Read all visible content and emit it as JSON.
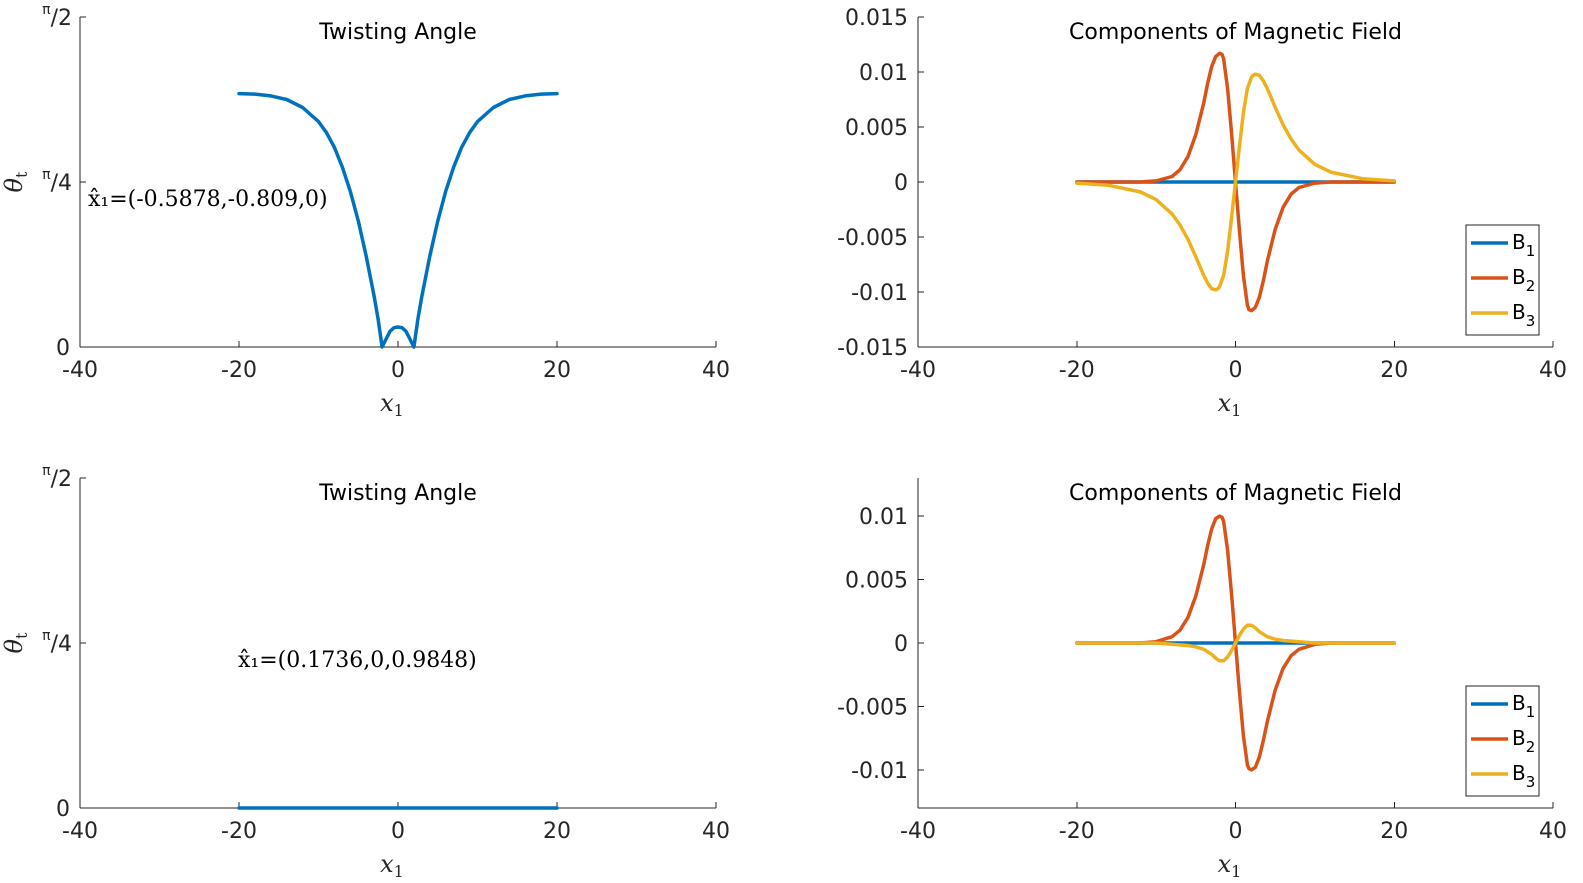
{
  "colors": {
    "b1": "#0072BD",
    "b2": "#D95319",
    "b3": "#EDB120",
    "theta": "#0072BD",
    "axis": "#262626"
  },
  "chart_data": [
    {
      "type": "line",
      "title": "Twisting Angle",
      "xlabel": "x",
      "xlabel_sub": "1",
      "ylabel": "θ",
      "ylabel_sub": "t",
      "xlim": [
        -40,
        40
      ],
      "xticks": [
        -40,
        -20,
        0,
        20,
        40
      ],
      "xtick_labels": [
        "-40",
        "-20",
        "0",
        "20",
        "40"
      ],
      "ylim": [
        0,
        1.5708
      ],
      "yticks": [
        0,
        0.7854,
        1.5708
      ],
      "ytick_labels": [
        "0",
        "π/4",
        "π/2"
      ],
      "annotation": "x̂₁=(-0.5878,-0.809,0)",
      "series": [
        {
          "color": "#0072BD",
          "x": [
            -20,
            -18,
            -16,
            -14,
            -12,
            -10,
            -9,
            -8,
            -7,
            -6,
            -5,
            -4,
            -3,
            -2.5,
            -2,
            -1.5,
            -1,
            -0.5,
            0,
            0.5,
            1,
            1.5,
            2,
            2.5,
            3,
            4,
            5,
            6,
            7,
            8,
            9,
            10,
            12,
            14,
            16,
            18,
            20
          ],
          "y": [
            1.206,
            1.204,
            1.195,
            1.178,
            1.14,
            1.073,
            1.02,
            0.95,
            0.857,
            0.741,
            0.6,
            0.432,
            0.24,
            0.133,
            0.0,
            0.038,
            0.075,
            0.092,
            0.095,
            0.092,
            0.075,
            0.038,
            0.0,
            0.133,
            0.24,
            0.432,
            0.6,
            0.741,
            0.857,
            0.95,
            1.02,
            1.073,
            1.14,
            1.178,
            1.195,
            1.204,
            1.206
          ]
        }
      ]
    },
    {
      "type": "line",
      "title": "Components of Magnetic Field",
      "xlabel": "x",
      "xlabel_sub": "1",
      "xlim": [
        -40,
        40
      ],
      "xticks": [
        -40,
        -20,
        0,
        20,
        40
      ],
      "xtick_labels": [
        "-40",
        "-20",
        "0",
        "20",
        "40"
      ],
      "ylim": [
        -0.015,
        0.015
      ],
      "yticks": [
        -0.015,
        -0.01,
        -0.005,
        0,
        0.005,
        0.01,
        0.015
      ],
      "ytick_labels": [
        "-0.015",
        "-0.01",
        "-0.005",
        "0",
        "0.005",
        "0.01",
        "0.015"
      ],
      "legend_placement": "bottom-right",
      "series": [
        {
          "name": "B",
          "name_sub": "1",
          "color": "#0072BD",
          "x": [
            -20,
            20
          ],
          "y": [
            0,
            0
          ]
        },
        {
          "name": "B",
          "name_sub": "2",
          "color": "#D95319",
          "x": [
            -20,
            -16,
            -12,
            -10,
            -8,
            -7,
            -6,
            -5,
            -4,
            -3.5,
            -3,
            -2.5,
            -2,
            -1.7,
            -1.5,
            -1,
            -0.5,
            0,
            0.5,
            1,
            1.5,
            1.7,
            2,
            2.5,
            3,
            3.5,
            4,
            5,
            6,
            7,
            8,
            10,
            12,
            16,
            20
          ],
          "y": [
            0.0,
            0.0,
            0.0,
            0.0001,
            0.0005,
            0.0011,
            0.0023,
            0.0043,
            0.0072,
            0.009,
            0.0105,
            0.0114,
            0.0117,
            0.0116,
            0.0112,
            0.0085,
            0.0045,
            0.0,
            -0.0045,
            -0.0085,
            -0.0112,
            -0.0116,
            -0.0117,
            -0.0114,
            -0.0105,
            -0.009,
            -0.0072,
            -0.0043,
            -0.0023,
            -0.0011,
            -0.0005,
            -0.0001,
            0.0,
            0.0,
            0.0
          ]
        },
        {
          "name": "B",
          "name_sub": "3",
          "color": "#EDB120",
          "x": [
            -20,
            -16,
            -12,
            -10,
            -8,
            -7,
            -6,
            -5,
            -4,
            -3.5,
            -3,
            -2.5,
            -2.2,
            -2,
            -1.5,
            -1,
            -0.5,
            0,
            0.5,
            1,
            1.5,
            2,
            2.2,
            2.5,
            3,
            3.5,
            4,
            5,
            6,
            7,
            8,
            10,
            12,
            16,
            20
          ],
          "y": [
            -0.0001,
            -0.0003,
            -0.0009,
            -0.0016,
            -0.0029,
            -0.0039,
            -0.0052,
            -0.0068,
            -0.0085,
            -0.0092,
            -0.0097,
            -0.0098,
            -0.0097,
            -0.0095,
            -0.0085,
            -0.0063,
            -0.0033,
            0.0,
            0.0033,
            0.0063,
            0.0085,
            0.0095,
            0.0097,
            0.0098,
            0.0097,
            0.0092,
            0.0085,
            0.0068,
            0.0052,
            0.0039,
            0.0029,
            0.0016,
            0.0009,
            0.0003,
            0.0001
          ]
        }
      ]
    },
    {
      "type": "line",
      "title": "Twisting Angle",
      "xlabel": "x",
      "xlabel_sub": "1",
      "ylabel": "θ",
      "ylabel_sub": "t",
      "xlim": [
        -40,
        40
      ],
      "xticks": [
        -40,
        -20,
        0,
        20,
        40
      ],
      "xtick_labels": [
        "-40",
        "-20",
        "0",
        "20",
        "40"
      ],
      "ylim": [
        0,
        1.5708
      ],
      "yticks": [
        0,
        0.7854,
        1.5708
      ],
      "ytick_labels": [
        "0",
        "π/4",
        "π/2"
      ],
      "annotation": "x̂₁=(0.1736,0,0.9848)",
      "series": [
        {
          "color": "#0072BD",
          "x": [
            -20,
            20
          ],
          "y": [
            0,
            0
          ]
        }
      ]
    },
    {
      "type": "line",
      "title": "Components of Magnetic Field",
      "xlabel": "x",
      "xlabel_sub": "1",
      "xlim": [
        -40,
        40
      ],
      "xticks": [
        -40,
        -20,
        0,
        20,
        40
      ],
      "xtick_labels": [
        "-40",
        "-20",
        "0",
        "20",
        "40"
      ],
      "ylim": [
        -0.013,
        0.013
      ],
      "yticks": [
        -0.01,
        -0.005,
        0,
        0.005,
        0.01
      ],
      "ytick_labels": [
        "-0.01",
        "-0.005",
        "0",
        "0.005",
        "0.01"
      ],
      "legend_placement": "bottom-right",
      "series": [
        {
          "name": "B",
          "name_sub": "1",
          "color": "#0072BD",
          "x": [
            -20,
            20
          ],
          "y": [
            0,
            0
          ]
        },
        {
          "name": "B",
          "name_sub": "2",
          "color": "#D95319",
          "x": [
            -20,
            -16,
            -12,
            -10,
            -8,
            -7,
            -6,
            -5,
            -4,
            -3.5,
            -3,
            -2.5,
            -2,
            -1.7,
            -1.5,
            -1,
            -0.5,
            0,
            0.5,
            1,
            1.5,
            1.7,
            2,
            2.5,
            3,
            3.5,
            4,
            5,
            6,
            7,
            8,
            10,
            12,
            16,
            20
          ],
          "y": [
            0.0,
            0.0,
            0.0,
            0.0001,
            0.0005,
            0.001,
            0.002,
            0.0037,
            0.0062,
            0.0077,
            0.009,
            0.0098,
            0.01,
            0.0099,
            0.0096,
            0.0073,
            0.0039,
            0.0,
            -0.0039,
            -0.0073,
            -0.0096,
            -0.0099,
            -0.01,
            -0.0098,
            -0.009,
            -0.0077,
            -0.0062,
            -0.0037,
            -0.002,
            -0.001,
            -0.0005,
            -0.0001,
            0.0,
            0.0,
            0.0
          ]
        },
        {
          "name": "B",
          "name_sub": "3",
          "color": "#EDB120",
          "x": [
            -20,
            -12,
            -10,
            -8,
            -6,
            -5,
            -4,
            -3,
            -2.5,
            -2,
            -1.5,
            -1,
            -0.5,
            0,
            0.5,
            1,
            1.5,
            2,
            2.5,
            3,
            4,
            5,
            6,
            8,
            10,
            12,
            20
          ],
          "y": [
            0.0,
            0.0,
            0.0,
            -0.0001,
            -0.0002,
            -0.0003,
            -0.0005,
            -0.0009,
            -0.0012,
            -0.0014,
            -0.0014,
            -0.0011,
            -0.0006,
            0.0,
            0.0006,
            0.0011,
            0.0014,
            0.0014,
            0.0012,
            0.0009,
            0.0005,
            0.0003,
            0.0002,
            0.0001,
            0.0,
            0.0,
            0.0
          ]
        }
      ]
    }
  ]
}
